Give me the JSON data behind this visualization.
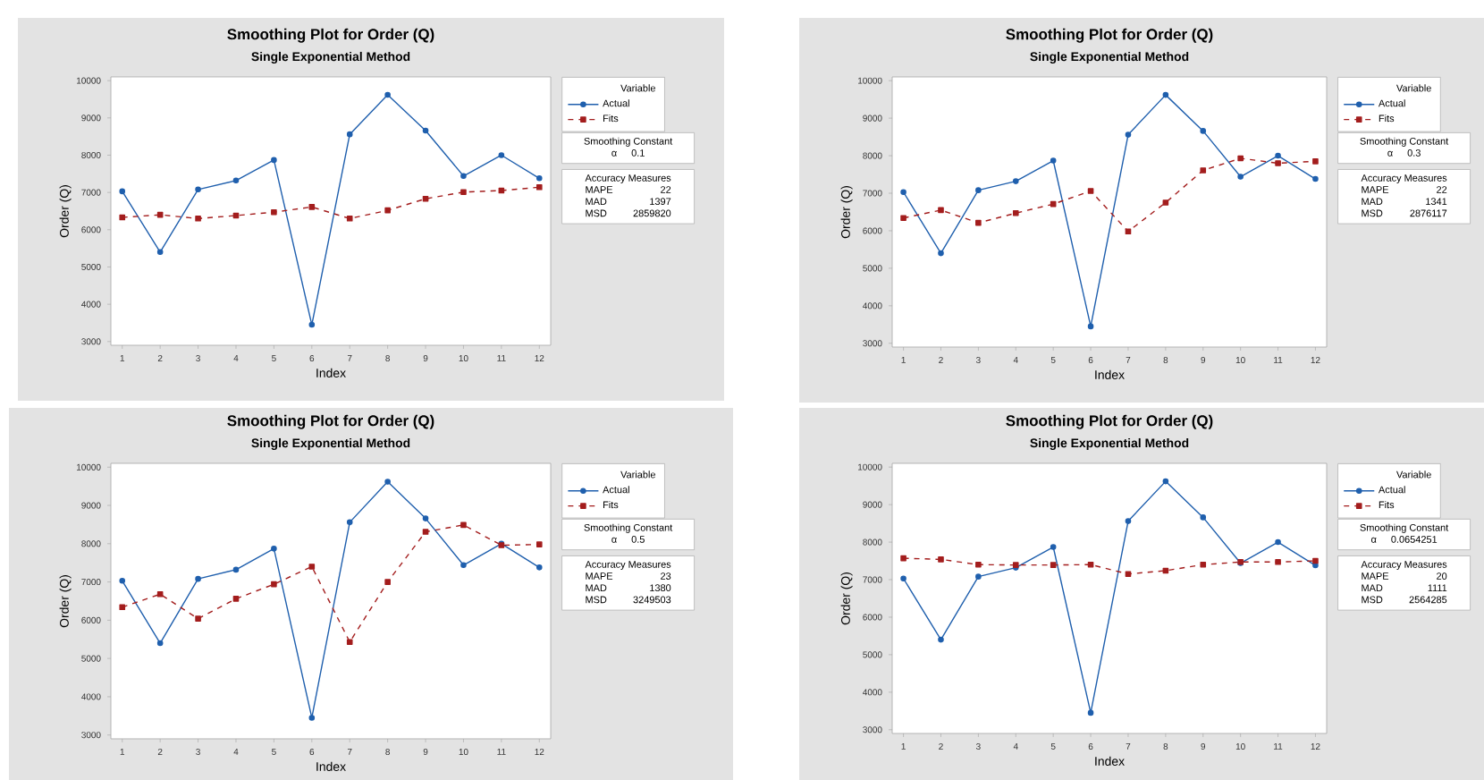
{
  "chart_data": [
    {
      "type": "line",
      "title": "Smoothing Plot for Order (Q)",
      "subtitle": "Single Exponential Method",
      "xlabel": "Index",
      "ylabel": "Order (Q)",
      "legend_title": "Variable",
      "legend": "right",
      "x": [
        1,
        2,
        3,
        4,
        5,
        6,
        7,
        8,
        9,
        10,
        11,
        12
      ],
      "xlim": [
        0.7,
        12.3
      ],
      "xticks": [
        1,
        2,
        3,
        4,
        5,
        6,
        7,
        8,
        9,
        10,
        11,
        12
      ],
      "ylim": [
        2900,
        10100
      ],
      "yticks": [
        3000,
        4000,
        5000,
        6000,
        7000,
        8000,
        9000,
        10000
      ],
      "series": [
        {
          "name": "Actual",
          "color": "#1f5fad",
          "marker": "circle",
          "line_style": "solid",
          "values": [
            7030,
            5400,
            7080,
            7320,
            7870,
            3450,
            8560,
            9620,
            8660,
            7440,
            8000,
            7380
          ]
        },
        {
          "name": "Fits",
          "color": "#a31d1d",
          "marker": "square",
          "line_style": "dashed",
          "values": [
            6330,
            6400,
            6300,
            6380,
            6470,
            6610,
            6300,
            6520,
            6830,
            7010,
            7050,
            7140
          ]
        }
      ],
      "annotations": [
        "Smoothing Constant",
        "α",
        "0.1",
        "Accuracy Measures",
        "MAPE",
        "22",
        "MAD",
        "1397",
        "MSD",
        "2859820"
      ]
    },
    {
      "type": "line",
      "title": "Smoothing Plot for Order (Q)",
      "subtitle": "Single Exponential Method",
      "xlabel": "Index",
      "ylabel": "Order (Q)",
      "legend_title": "Variable",
      "legend": "right",
      "x": [
        1,
        2,
        3,
        4,
        5,
        6,
        7,
        8,
        9,
        10,
        11,
        12
      ],
      "xlim": [
        0.7,
        12.3
      ],
      "xticks": [
        1,
        2,
        3,
        4,
        5,
        6,
        7,
        8,
        9,
        10,
        11,
        12
      ],
      "ylim": [
        2900,
        10100
      ],
      "yticks": [
        3000,
        4000,
        5000,
        6000,
        7000,
        8000,
        9000,
        10000
      ],
      "series": [
        {
          "name": "Actual",
          "color": "#1f5fad",
          "marker": "circle",
          "line_style": "solid",
          "values": [
            7030,
            5400,
            7080,
            7320,
            7870,
            3450,
            8560,
            9620,
            8660,
            7440,
            8000,
            7380
          ]
        },
        {
          "name": "Fits",
          "color": "#a31d1d",
          "marker": "square",
          "line_style": "dashed",
          "values": [
            6340,
            6550,
            6210,
            6470,
            6710,
            7060,
            5980,
            6750,
            7610,
            7930,
            7800,
            7850
          ]
        }
      ],
      "annotations": [
        "Smoothing Constant",
        "α",
        "0.3",
        "Accuracy Measures",
        "MAPE",
        "22",
        "MAD",
        "1341",
        "MSD",
        "2876117"
      ]
    },
    {
      "type": "line",
      "title": "Smoothing Plot for Order (Q)",
      "subtitle": "Single Exponential Method",
      "xlabel": "Index",
      "ylabel": "Order (Q)",
      "legend_title": "Variable",
      "legend": "right",
      "x": [
        1,
        2,
        3,
        4,
        5,
        6,
        7,
        8,
        9,
        10,
        11,
        12
      ],
      "xlim": [
        0.7,
        12.3
      ],
      "xticks": [
        1,
        2,
        3,
        4,
        5,
        6,
        7,
        8,
        9,
        10,
        11,
        12
      ],
      "ylim": [
        2900,
        10100
      ],
      "yticks": [
        3000,
        4000,
        5000,
        6000,
        7000,
        8000,
        9000,
        10000
      ],
      "series": [
        {
          "name": "Actual",
          "color": "#1f5fad",
          "marker": "circle",
          "line_style": "solid",
          "values": [
            7030,
            5400,
            7080,
            7320,
            7870,
            3450,
            8560,
            9620,
            8660,
            7440,
            8000,
            7380
          ]
        },
        {
          "name": "Fits",
          "color": "#a31d1d",
          "marker": "square",
          "line_style": "dashed",
          "values": [
            6340,
            6680,
            6040,
            6560,
            6940,
            7400,
            5430,
            7000,
            8310,
            8490,
            7960,
            7980
          ]
        }
      ],
      "annotations": [
        "Smoothing Constant",
        "α",
        "0.5",
        "Accuracy Measures",
        "MAPE",
        "23",
        "MAD",
        "1380",
        "MSD",
        "3249503"
      ]
    },
    {
      "type": "line",
      "title": "Smoothing Plot for Order (Q)",
      "subtitle": "Single Exponential Method",
      "xlabel": "Index",
      "ylabel": "Order (Q)",
      "legend_title": "Variable",
      "legend": "right",
      "x": [
        1,
        2,
        3,
        4,
        5,
        6,
        7,
        8,
        9,
        10,
        11,
        12
      ],
      "xlim": [
        0.7,
        12.3
      ],
      "xticks": [
        1,
        2,
        3,
        4,
        5,
        6,
        7,
        8,
        9,
        10,
        11,
        12
      ],
      "ylim": [
        2900,
        10100
      ],
      "yticks": [
        3000,
        4000,
        5000,
        6000,
        7000,
        8000,
        9000,
        10000
      ],
      "series": [
        {
          "name": "Actual",
          "color": "#1f5fad",
          "marker": "circle",
          "line_style": "solid",
          "values": [
            7030,
            5400,
            7080,
            7320,
            7870,
            3450,
            8560,
            9620,
            8660,
            7440,
            8000,
            7380
          ]
        },
        {
          "name": "Fits",
          "color": "#a31d1d",
          "marker": "square",
          "line_style": "dashed",
          "values": [
            7570,
            7540,
            7400,
            7390,
            7390,
            7400,
            7150,
            7240,
            7400,
            7470,
            7470,
            7500
          ]
        }
      ],
      "annotations": [
        "Smoothing Constant",
        "α",
        "0.0654251",
        "Accuracy Measures",
        "MAPE",
        "20",
        "MAD",
        "1111",
        "MSD",
        "2564285"
      ]
    }
  ]
}
